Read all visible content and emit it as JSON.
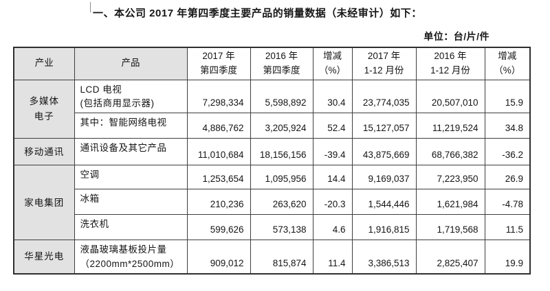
{
  "title": "一、本公司 2017 年第四季度主要产品的销量数据（未经审计）如下：",
  "unit_label": "单位：台/片/件",
  "table": {
    "header": {
      "industry": "产业",
      "product": "产品",
      "q4_2017": {
        "l1": "2017 年",
        "l2": "第四季度"
      },
      "q4_2016": {
        "l1": "2016 年",
        "l2": "第四季度"
      },
      "chg_q": {
        "l1": "增减",
        "l2": "（%）"
      },
      "fy_2017": {
        "l1": "2017 年",
        "l2": "1-12 月份"
      },
      "fy_2016": {
        "l1": "2016 年",
        "l2": "1-12 月份"
      },
      "chg_fy": {
        "l1": "增减",
        "l2": "（%）"
      }
    },
    "rows": [
      {
        "industry": {
          "label": "多媒体\n电子",
          "rowspan": 2
        },
        "product": "LCD 电视\n(包括商用显示器)",
        "values": [
          "7,298,334",
          "5,598,892",
          "30.4",
          "23,774,035",
          "20,507,010",
          "15.9"
        ]
      },
      {
        "product": "其中：智能网络电视",
        "values": [
          "4,886,762",
          "3,205,924",
          "52.4",
          "15,127,057",
          "11,219,524",
          "34.8"
        ]
      },
      {
        "industry": {
          "label": "移动通讯",
          "rowspan": 1
        },
        "product": "通讯设备及其它产品",
        "values": [
          "11,010,684",
          "18,156,156",
          "-39.4",
          "43,875,669",
          "68,766,382",
          "-36.2"
        ]
      },
      {
        "industry": {
          "label": "家电集团",
          "rowspan": 3
        },
        "product": "空调",
        "values": [
          "1,253,654",
          "1,095,956",
          "14.4",
          "9,169,037",
          "7,223,950",
          "26.9"
        ]
      },
      {
        "product": "冰箱",
        "values": [
          "210,236",
          "263,620",
          "-20.3",
          "1,544,446",
          "1,621,984",
          "-4.78"
        ]
      },
      {
        "product": "洗衣机",
        "values": [
          "599,626",
          "573,138",
          "4.6",
          "1,916,815",
          "1,719,568",
          "11.5"
        ]
      },
      {
        "industry": {
          "label": "华星光电",
          "rowspan": 1
        },
        "product": "液晶玻璃基板投片量\n（2200mm*2500mm）",
        "values": [
          "909,012",
          "815,874",
          "11.4",
          "3,386,513",
          "2,825,407",
          "19.9"
        ]
      }
    ]
  },
  "chart_data": {
    "type": "table",
    "title": "2017 年第四季度主要产品的销量数据（未经审计）",
    "unit": "台/片/件",
    "columns": [
      "产业",
      "产品",
      "2017 年第四季度",
      "2016 年第四季度",
      "增减（%）",
      "2017 年 1-12 月份",
      "2016 年 1-12 月份",
      "增减（%）"
    ],
    "rows": [
      [
        "多媒体电子",
        "LCD 电视(包括商用显示器)",
        7298334,
        5598892,
        30.4,
        23774035,
        20507010,
        15.9
      ],
      [
        "多媒体电子",
        "其中：智能网络电视",
        4886762,
        3205924,
        52.4,
        15127057,
        11219524,
        34.8
      ],
      [
        "移动通讯",
        "通讯设备及其它产品",
        11010684,
        18156156,
        -39.4,
        43875669,
        68766382,
        -36.2
      ],
      [
        "家电集团",
        "空调",
        1253654,
        1095956,
        14.4,
        9169037,
        7223950,
        26.9
      ],
      [
        "家电集团",
        "冰箱",
        210236,
        263620,
        -20.3,
        1544446,
        1621984,
        -4.78
      ],
      [
        "家电集团",
        "洗衣机",
        599626,
        573138,
        4.6,
        1916815,
        1719568,
        11.5
      ],
      [
        "华星光电",
        "液晶玻璃基板投片量（2200mm*2500mm）",
        909012,
        815874,
        11.4,
        3386513,
        2825407,
        19.9
      ]
    ],
    "colors": {
      "shaded_cell": "#e2e2e2",
      "border": "#3d3d3d",
      "text": "#141414"
    }
  }
}
